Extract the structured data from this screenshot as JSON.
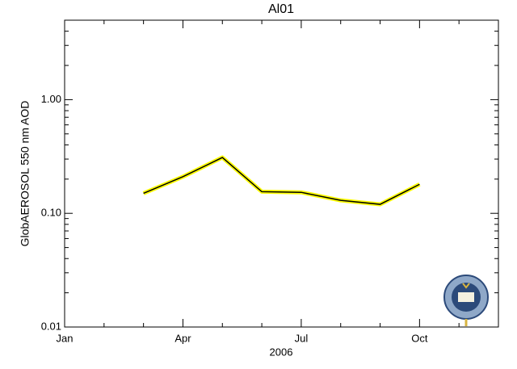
{
  "chart_data": {
    "type": "line",
    "title": "Al01",
    "y_label": "GlobAEROSOL 550 nm AOD",
    "x_label": "2006",
    "categories": [
      "Jan",
      null,
      null,
      "Apr",
      null,
      null,
      "Jul",
      null,
      null,
      "Oct",
      null,
      null
    ],
    "series": [
      {
        "color": "#000000",
        "band_color": "#ffff00",
        "values": [
          null,
          null,
          0.15,
          0.21,
          0.31,
          0.155,
          0.153,
          0.13,
          0.12,
          0.18,
          null,
          null
        ]
      }
    ],
    "ylim": [
      0.01,
      5
    ],
    "y_scale": "log",
    "yticks": [
      {
        "value": 0.01,
        "label": "0.01"
      },
      {
        "value": 0.1,
        "label": "0.10"
      },
      {
        "value": 1,
        "label": "1.00"
      }
    ]
  }
}
